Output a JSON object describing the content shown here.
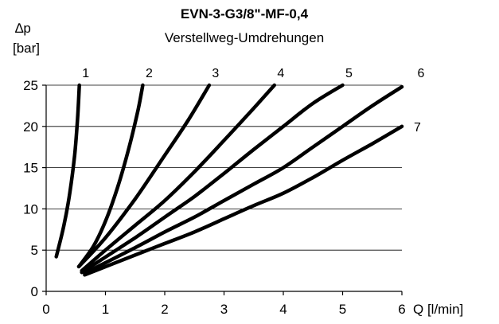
{
  "chart_data": {
    "type": "line",
    "title": "EVN-3-G3/8\"-MF-0,4",
    "subtitle": "Verstellweg-Umdrehungen",
    "ylabel_line1": "∆p",
    "ylabel_line2": "[bar]",
    "xlabel": "Q [l/min]",
    "xlim": [
      0,
      6
    ],
    "ylim": [
      0,
      25
    ],
    "x_ticks": [
      "0",
      "1",
      "2",
      "3",
      "4",
      "5",
      "6"
    ],
    "y_ticks": [
      "0",
      "5",
      "10",
      "15",
      "20",
      "25"
    ],
    "grid": "horizontal",
    "line_color": "#000000",
    "series": [
      {
        "name": "1",
        "points": [
          [
            0.17,
            4.2
          ],
          [
            0.3,
            8
          ],
          [
            0.4,
            12
          ],
          [
            0.48,
            16.5
          ],
          [
            0.53,
            21
          ],
          [
            0.56,
            25
          ]
        ]
      },
      {
        "name": "2",
        "points": [
          [
            0.55,
            3.0
          ],
          [
            0.8,
            5.5
          ],
          [
            1.0,
            8.5
          ],
          [
            1.2,
            12.5
          ],
          [
            1.4,
            17.5
          ],
          [
            1.55,
            22
          ],
          [
            1.63,
            25
          ]
        ]
      },
      {
        "name": "3",
        "points": [
          [
            0.55,
            3.0
          ],
          [
            1.0,
            6.5
          ],
          [
            1.5,
            11.2
          ],
          [
            2.0,
            16.5
          ],
          [
            2.4,
            20.8
          ],
          [
            2.75,
            25
          ]
        ]
      },
      {
        "name": "4",
        "points": [
          [
            0.6,
            2.5
          ],
          [
            1.0,
            5.0
          ],
          [
            1.5,
            8.0
          ],
          [
            2.0,
            11.0
          ],
          [
            2.5,
            14.5
          ],
          [
            3.0,
            18.3
          ],
          [
            3.5,
            22.2
          ],
          [
            3.85,
            25
          ]
        ]
      },
      {
        "name": "5",
        "points": [
          [
            0.6,
            2.3
          ],
          [
            1.5,
            6.5
          ],
          [
            2.0,
            9.0
          ],
          [
            2.5,
            11.5
          ],
          [
            3.0,
            14.3
          ],
          [
            3.5,
            17.2
          ],
          [
            4.0,
            20.0
          ],
          [
            4.5,
            22.8
          ],
          [
            5.0,
            25
          ]
        ]
      },
      {
        "name": "6",
        "points": [
          [
            0.65,
            2.2
          ],
          [
            1.5,
            5.3
          ],
          [
            2.0,
            7.2
          ],
          [
            2.5,
            9.0
          ],
          [
            3.0,
            11.0
          ],
          [
            3.5,
            13.0
          ],
          [
            4.0,
            15.0
          ],
          [
            4.5,
            17.5
          ],
          [
            5.0,
            20.0
          ],
          [
            5.5,
            22.5
          ],
          [
            6.0,
            24.8
          ]
        ]
      },
      {
        "name": "7",
        "points": [
          [
            0.65,
            2.0
          ],
          [
            1.5,
            4.4
          ],
          [
            2.0,
            5.8
          ],
          [
            2.5,
            7.2
          ],
          [
            3.0,
            8.8
          ],
          [
            3.5,
            10.4
          ],
          [
            4.0,
            11.9
          ],
          [
            4.5,
            13.8
          ],
          [
            5.0,
            15.9
          ],
          [
            5.5,
            17.9
          ],
          [
            6.0,
            20.0
          ]
        ]
      }
    ]
  }
}
